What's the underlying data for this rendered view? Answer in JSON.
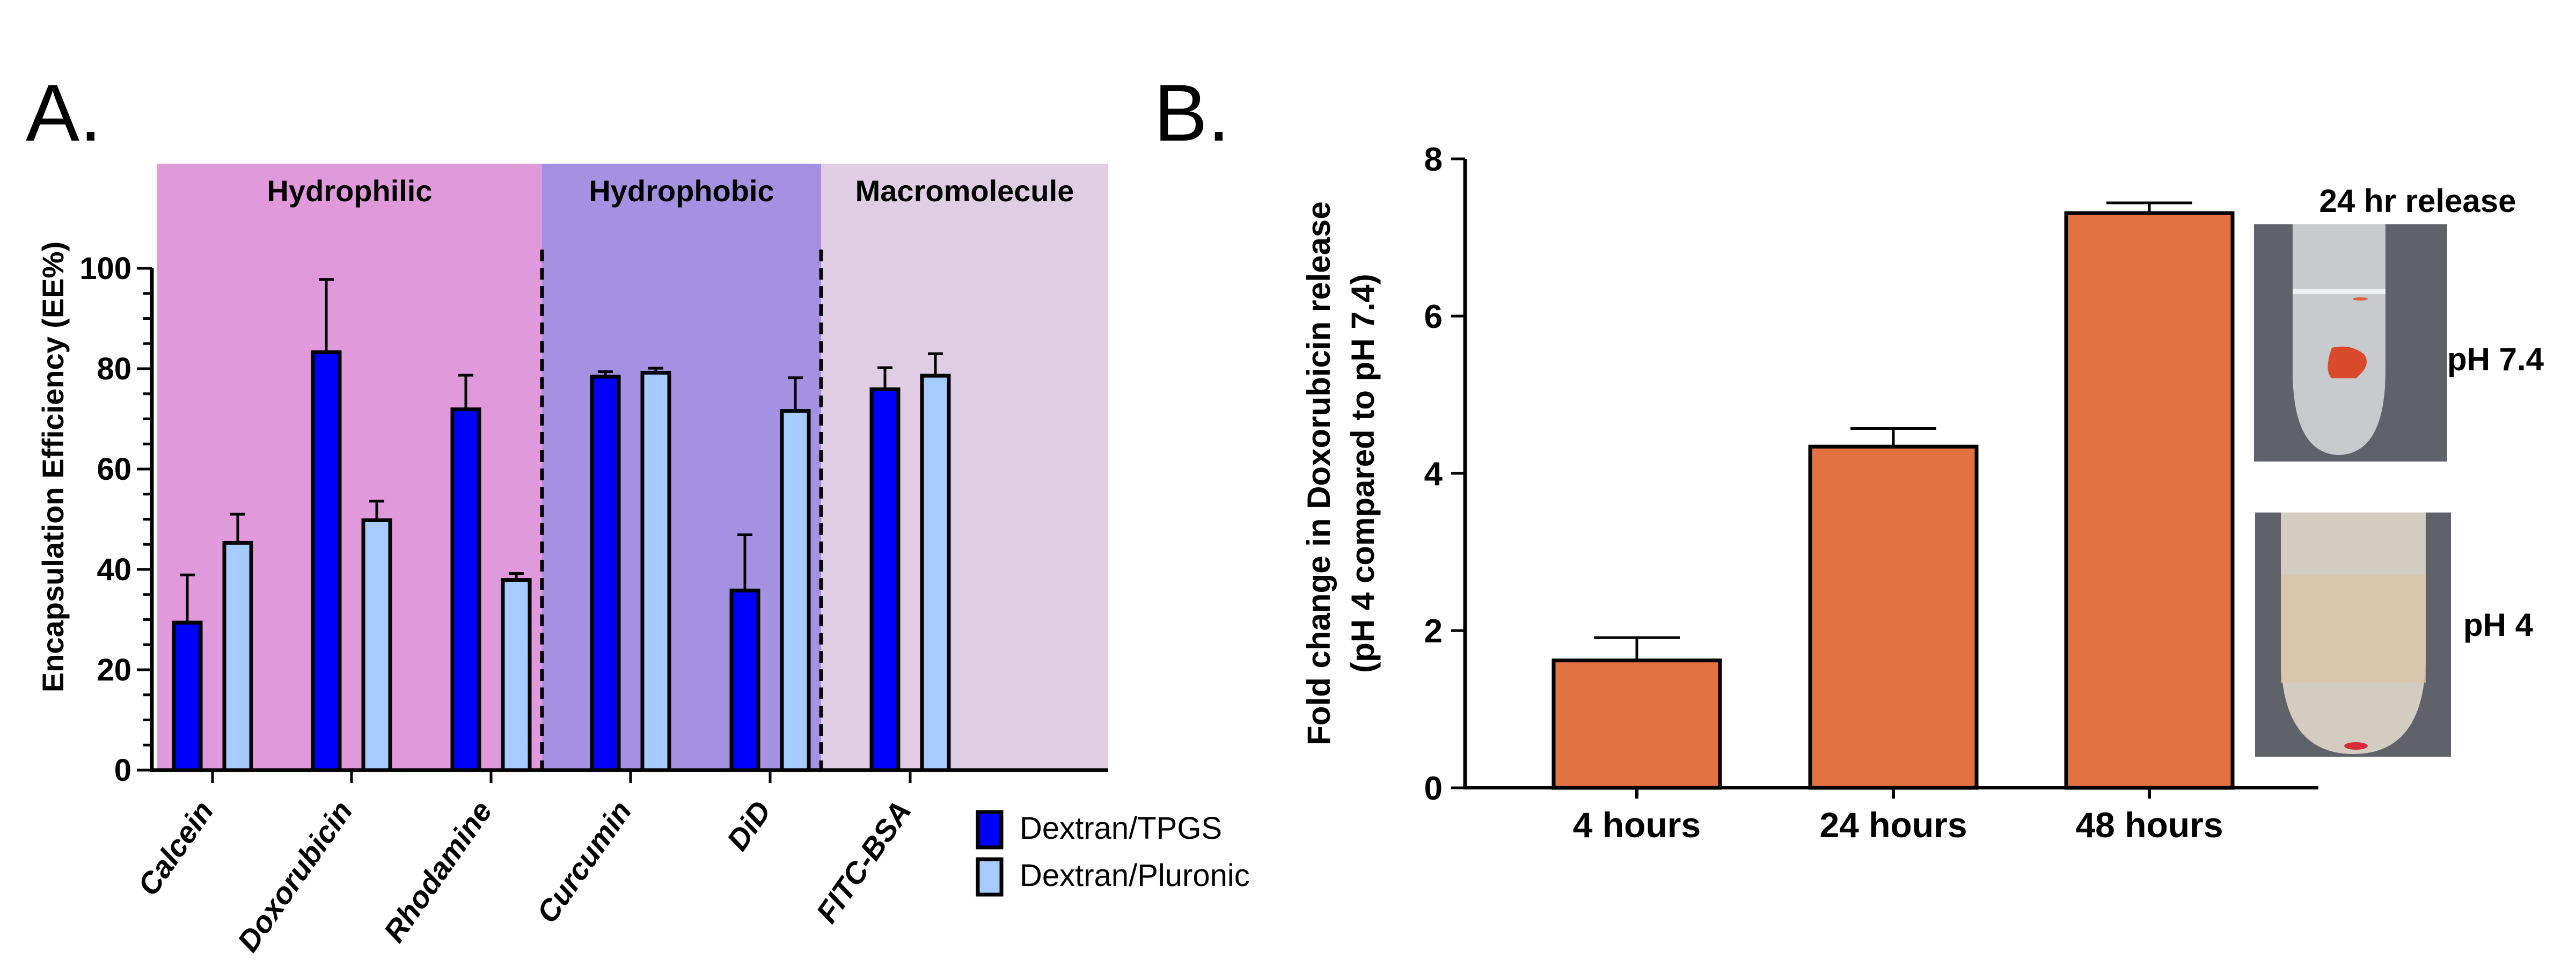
{
  "chart_data": [
    {
      "panel": "A.",
      "type": "bar",
      "title": "",
      "xlabel": "",
      "ylabel": "Encapsulation Efficiency (EE%)",
      "ylim": [
        0,
        100
      ],
      "yticks": [
        "0",
        "20",
        "40",
        "60",
        "80",
        "100"
      ],
      "minor_tick_step": 5,
      "categories": [
        "Calcein",
        "Doxorubicin",
        "Rhodamine",
        "Curcumin",
        "DiD",
        "FITC-BSA"
      ],
      "regions": [
        {
          "label": "Hydrophilic",
          "categories": [
            "Calcein",
            "Doxorubicin",
            "Rhodamine"
          ],
          "color": "#e09adc"
        },
        {
          "label": "Hydrophobic",
          "categories": [
            "Curcumin",
            "DiD"
          ],
          "color": "#a491e1"
        },
        {
          "label": "Macromolecule",
          "categories": [
            "FITC-BSA"
          ],
          "color": "#dfcde4"
        }
      ],
      "series": [
        {
          "name": "Dextran/TPGS",
          "color": "#0000ff",
          "values": [
            29.4,
            83.3,
            71.9,
            78.4,
            35.8,
            75.9
          ],
          "error_upper": [
            38.9,
            97.8,
            78.7,
            79.4,
            46.9,
            80.2
          ]
        },
        {
          "name": "Dextran/Pluronic",
          "color": "#a6ccff",
          "values": [
            45.3,
            49.8,
            37.9,
            79.2,
            71.6,
            78.6
          ],
          "error_upper": [
            51.0,
            53.6,
            39.2,
            80.1,
            78.2,
            83.0
          ]
        }
      ],
      "legend": {
        "position": "bottom-right",
        "entries": [
          "Dextran/TPGS",
          "Dextran/Pluronic"
        ]
      },
      "grid": false
    },
    {
      "panel": "B.",
      "type": "bar",
      "title": "",
      "xlabel": "",
      "ylabel": "Fold change in Doxorubicin release",
      "ylabel2": "(pH 4 compared to pH 7.4)",
      "ylim": [
        0,
        8
      ],
      "yticks": [
        "0",
        "2",
        "4",
        "6",
        "8"
      ],
      "categories": [
        "4 hours",
        "24 hours",
        "48 hours"
      ],
      "series": [
        {
          "name": "Fold change",
          "color": "#e37243",
          "values": [
            1.62,
            4.34,
            7.31
          ],
          "error_upper": [
            1.91,
            4.57,
            7.44
          ]
        }
      ],
      "grid": false,
      "annotations": {
        "title": "24 hr release",
        "photo_labels": [
          "pH 7.4",
          "pH 4"
        ]
      }
    }
  ]
}
